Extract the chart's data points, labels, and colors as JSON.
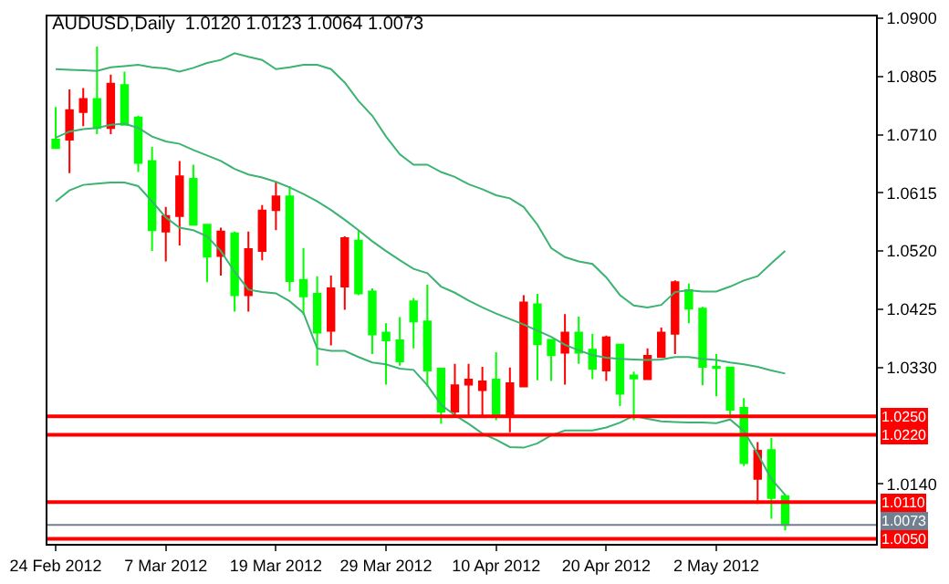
{
  "chart_data": {
    "type": "candlestick",
    "title": "AUDUSD,Daily  1.0120 1.0123 1.0064 1.0073",
    "categories": [
      "24 Feb 2012",
      null,
      null,
      null,
      null,
      null,
      null,
      null,
      "7 Mar 2012",
      null,
      null,
      null,
      null,
      null,
      null,
      null,
      "19 Mar 2012",
      null,
      null,
      null,
      null,
      null,
      null,
      null,
      "29 Mar 2012",
      null,
      null,
      null,
      null,
      null,
      null,
      null,
      "10 Apr 2012",
      null,
      null,
      null,
      null,
      null,
      null,
      null,
      "20 Apr 2012",
      null,
      null,
      null,
      null,
      null,
      null,
      null,
      "2 May 2012",
      null,
      null,
      null,
      null,
      null
    ],
    "ohlc": [
      [
        1.0702,
        1.0755,
        1.0688,
        1.0688
      ],
      [
        1.0702,
        1.0784,
        1.0647,
        1.075
      ],
      [
        1.0747,
        1.0786,
        1.0724,
        1.0768
      ],
      [
        1.0768,
        1.0854,
        1.0711,
        1.0721
      ],
      [
        1.0721,
        1.0808,
        1.0711,
        1.0793
      ],
      [
        1.0791,
        1.0813,
        1.0726,
        1.0726
      ],
      [
        1.0738,
        1.0741,
        1.0649,
        1.0664
      ],
      [
        1.0667,
        1.069,
        1.052,
        1.0554
      ],
      [
        1.0552,
        1.0592,
        1.0503,
        1.0577
      ],
      [
        1.0577,
        1.0667,
        1.0529,
        1.0642
      ],
      [
        1.0638,
        1.0661,
        1.0563,
        1.0563
      ],
      [
        1.0563,
        1.0563,
        1.0469,
        1.0511
      ],
      [
        1.0512,
        1.0558,
        1.048,
        1.0552
      ],
      [
        1.0549,
        1.0552,
        1.0421,
        1.0448
      ],
      [
        1.0448,
        1.0552,
        1.0421,
        1.0523
      ],
      [
        1.052,
        1.0595,
        1.0505,
        1.0586
      ],
      [
        1.0587,
        1.0632,
        1.0554,
        1.0609
      ],
      [
        1.0609,
        1.0626,
        1.0454,
        1.0471
      ],
      [
        1.0473,
        1.0525,
        1.0416,
        1.0446
      ],
      [
        1.045,
        1.0479,
        1.0333,
        1.0387
      ],
      [
        1.039,
        1.048,
        1.0366,
        1.0459
      ],
      [
        1.0462,
        1.0544,
        1.0424,
        1.0541
      ],
      [
        1.0537,
        1.0554,
        1.0448,
        1.0451
      ],
      [
        1.0454,
        1.0459,
        1.0352,
        1.0384
      ],
      [
        1.0387,
        1.0402,
        1.0302,
        1.0374
      ],
      [
        1.0374,
        1.0412,
        1.0333,
        1.034
      ],
      [
        1.0438,
        1.0443,
        1.0361,
        1.0405
      ],
      [
        1.0405,
        1.0465,
        1.0299,
        1.0325
      ],
      [
        1.0328,
        1.0328,
        1.0238,
        1.0258
      ],
      [
        1.0258,
        1.0336,
        1.0251,
        1.0301
      ],
      [
        1.0302,
        1.0336,
        1.0251,
        1.031
      ],
      [
        1.0293,
        1.0331,
        1.0251,
        1.0307
      ],
      [
        1.031,
        1.0355,
        1.0244,
        1.0252
      ],
      [
        1.0252,
        1.033,
        1.0224,
        1.0304
      ],
      [
        1.0299,
        1.0448,
        1.0299,
        1.0436
      ],
      [
        1.0433,
        1.045,
        1.0309,
        1.0368
      ],
      [
        1.0375,
        1.0375,
        1.0308,
        1.035
      ],
      [
        1.0354,
        1.0417,
        1.0302,
        1.0387
      ],
      [
        1.0387,
        1.0413,
        1.0336,
        1.0354
      ],
      [
        1.0359,
        1.0385,
        1.0311,
        1.0328
      ],
      [
        1.0325,
        1.0382,
        1.0308,
        1.0379
      ],
      [
        1.0367,
        1.0367,
        1.0267,
        1.0287
      ],
      [
        1.0317,
        1.0323,
        1.0244,
        1.0312
      ],
      [
        1.0311,
        1.0361,
        1.0311,
        1.0349
      ],
      [
        1.0347,
        1.0395,
        1.0347,
        1.0387
      ],
      [
        1.0385,
        1.0472,
        1.0352,
        1.0469
      ],
      [
        1.0456,
        1.0467,
        1.0402,
        1.0426
      ],
      [
        1.0426,
        1.0429,
        1.0301,
        1.0331
      ],
      [
        1.0331,
        1.0352,
        1.0283,
        1.0329
      ],
      [
        1.033,
        1.033,
        1.0251,
        1.0261
      ],
      [
        1.0264,
        1.028,
        1.0169,
        1.0174
      ],
      [
        1.0148,
        1.0208,
        1.0107,
        1.0194
      ],
      [
        1.0195,
        1.0215,
        1.0083,
        1.0117
      ],
      [
        1.012,
        1.0123,
        1.0064,
        1.0073
      ]
    ],
    "colors": [
      "#00ff00",
      "#ff0000",
      "#ff0000",
      "#00ff00",
      "#ff0000",
      "#00ff00",
      "#00ff00",
      "#00ff00",
      "#ff0000",
      "#ff0000",
      "#00ff00",
      "#00ff00",
      "#ff0000",
      "#00ff00",
      "#ff0000",
      "#ff0000",
      "#ff0000",
      "#00ff00",
      "#00ff00",
      "#00ff00",
      "#ff0000",
      "#ff0000",
      "#00ff00",
      "#00ff00",
      "#00ff00",
      "#00ff00",
      "#00ff00",
      "#00ff00",
      "#00ff00",
      "#ff0000",
      "#ff0000",
      "#ff0000",
      "#00ff00",
      "#ff0000",
      "#ff0000",
      "#00ff00",
      "#00ff00",
      "#ff0000",
      "#00ff00",
      "#00ff00",
      "#ff0000",
      "#00ff00",
      "#00ff00",
      "#ff0000",
      "#ff0000",
      "#ff0000",
      "#00ff00",
      "#00ff00",
      "#00ff00",
      "#00ff00",
      "#00ff00",
      "#ff0000",
      "#00ff00",
      "#00ff00"
    ],
    "series": [
      {
        "type": "line",
        "color": "#3cb371",
        "values": [
          1.0817,
          1.0816,
          1.0815,
          1.0814,
          1.082,
          1.0822,
          1.0824,
          1.082,
          1.0818,
          1.0813,
          1.0819,
          1.0827,
          1.0832,
          1.0843,
          1.0837,
          1.0832,
          1.0817,
          1.082,
          1.0824,
          1.0824,
          1.0817,
          1.0795,
          1.0765,
          1.0741,
          1.0707,
          1.0678,
          1.0661,
          1.0661,
          1.0649,
          1.0641,
          1.0629,
          1.0621,
          1.0611,
          1.0606,
          1.0592,
          1.0563,
          1.0525,
          1.051,
          1.0503,
          1.0499,
          1.0477,
          1.0448,
          1.0431,
          1.0428,
          1.0432,
          1.0453,
          1.0456,
          1.0454,
          1.0454,
          1.0462,
          1.0472,
          1.0479,
          1.05,
          1.052
        ]
      },
      {
        "type": "line",
        "color": "#3cb371",
        "values": [
          1.0705,
          1.0715,
          1.0719,
          1.0721,
          1.0726,
          1.0728,
          1.0721,
          1.0707,
          1.0699,
          1.0695,
          1.0685,
          1.0676,
          1.0667,
          1.0654,
          1.0645,
          1.064,
          1.0633,
          1.0624,
          1.0613,
          1.0601,
          1.0587,
          1.0571,
          1.0554,
          1.0536,
          1.052,
          1.0505,
          1.0491,
          1.0484,
          1.0462,
          1.0452,
          1.0439,
          1.0428,
          1.0418,
          1.0409,
          1.04,
          1.039,
          1.038,
          1.0367,
          1.0358,
          1.035,
          1.0346,
          1.0344,
          1.0343,
          1.0342,
          1.0343,
          1.0347,
          1.0347,
          1.0344,
          1.0342,
          1.0338,
          1.0335,
          1.0331,
          1.0325,
          1.032
        ]
      },
      {
        "type": "line",
        "color": "#3cb371",
        "values": [
          1.0601,
          1.0619,
          1.0628,
          1.063,
          1.0632,
          1.0632,
          1.0626,
          1.0601,
          1.0575,
          1.0558,
          1.0554,
          1.0544,
          1.052,
          1.0486,
          1.0457,
          1.0453,
          1.0451,
          1.0438,
          1.0419,
          1.0361,
          1.0357,
          1.0357,
          1.0347,
          1.0338,
          1.0335,
          1.0328,
          1.0326,
          1.0301,
          1.0269,
          1.0252,
          1.0238,
          1.0222,
          1.0212,
          1.02,
          1.0199,
          1.0206,
          1.0219,
          1.0227,
          1.0227,
          1.0227,
          1.0232,
          1.024,
          1.0251,
          1.0246,
          1.0242,
          1.0241,
          1.024,
          1.024,
          1.0239,
          1.0245,
          1.0226,
          1.0189,
          1.0148,
          1.0122
        ]
      }
    ],
    "ylim": [
      1.0042,
      1.0903
    ],
    "yticks": [
      {
        "value": 1.014,
        "label": "1.0140"
      },
      {
        "value": 1.033,
        "label": "1.0330"
      },
      1.0425,
      {
        "value": 1.052,
        "label": "1.0520"
      },
      1.0615,
      {
        "value": 1.071,
        "label": "1.0710"
      },
      1.0805,
      {
        "value": 1.09,
        "label": "1.0900"
      }
    ],
    "ref_lines": [
      {
        "axis": "y",
        "value": 1.025,
        "label": "1.0250",
        "color": "#ff0000"
      },
      {
        "axis": "y",
        "value": 1.022,
        "label": "1.0220",
        "color": "#ff0000"
      },
      {
        "axis": "y",
        "value": 1.011,
        "label": "1.0110",
        "color": "#ff0000"
      },
      {
        "axis": "y",
        "value": 1.0073,
        "label": "1.0073",
        "color": "#708090"
      },
      {
        "axis": "y",
        "value": 1.005,
        "label": "1.0050",
        "color": "#ff0000"
      }
    ]
  }
}
